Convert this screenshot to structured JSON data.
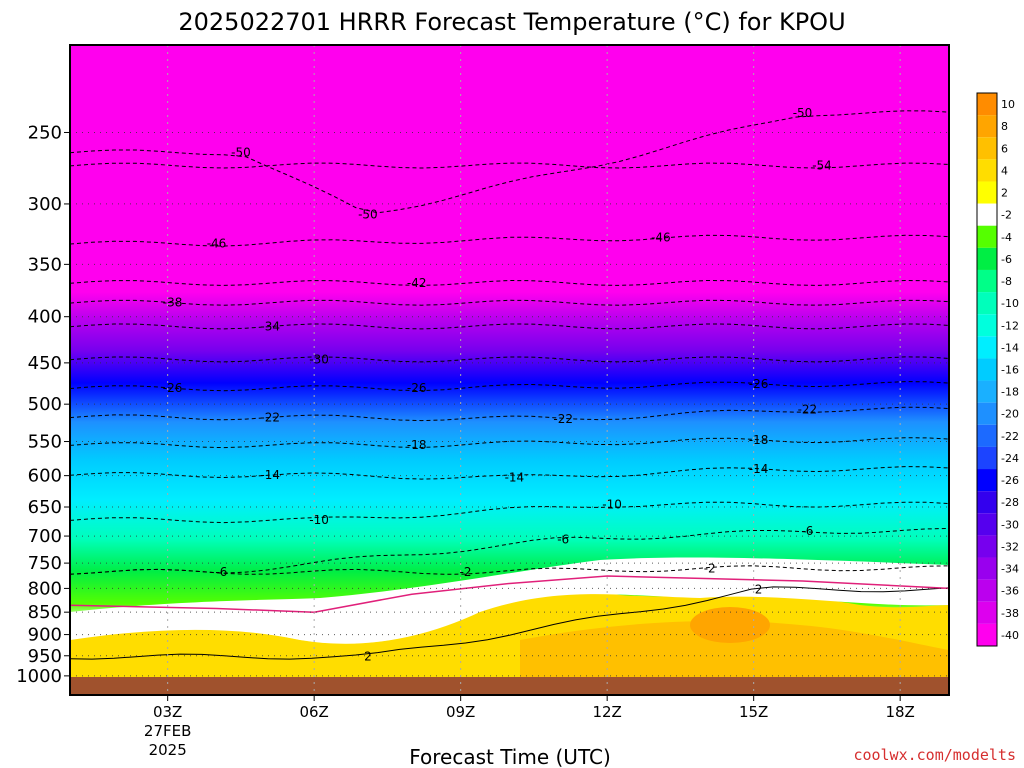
{
  "chart_data": {
    "type": "heatmap",
    "title": "2025022701 HRRR Forecast Temperature (°C) for KPOU",
    "xlabel": "Forecast Time (UTC)",
    "ylabel": "",
    "credit": "coolwx.com/modelts",
    "x_range_hours": [
      1,
      19
    ],
    "y_scale": "log-pressure",
    "y_range_hpa": [
      1050,
      200
    ],
    "y_ticks": [
      250,
      300,
      350,
      400,
      450,
      500,
      550,
      600,
      650,
      700,
      750,
      800,
      850,
      900,
      950,
      1000
    ],
    "y_tick_labels": [
      "250",
      "300",
      "350",
      "400",
      "450",
      "500",
      "550",
      "600",
      "650",
      "700",
      "750",
      "800",
      "850",
      "900",
      "950",
      "1000"
    ],
    "x_ticks": [
      {
        "hour": 3,
        "label": "03Z",
        "sub": [
          "27FEB",
          "2025"
        ]
      },
      {
        "hour": 6,
        "label": "06Z",
        "sub": []
      },
      {
        "hour": 9,
        "label": "09Z",
        "sub": []
      },
      {
        "hour": 12,
        "label": "12Z",
        "sub": []
      },
      {
        "hour": 15,
        "label": "15Z",
        "sub": []
      },
      {
        "hour": 18,
        "label": "18Z",
        "sub": []
      }
    ],
    "grid": true,
    "ground_color": "#a0522d",
    "colorbar": {
      "labels": [
        "10",
        "8",
        "6",
        "4",
        "2",
        "-2",
        "-4",
        "-6",
        "-8",
        "-10",
        "-12",
        "-14",
        "-16",
        "-18",
        "-20",
        "-22",
        "-24",
        "-26",
        "-28",
        "-30",
        "-32",
        "-34",
        "-36",
        "-38",
        "-40"
      ],
      "colors": [
        "#ff8c00",
        "#ffa500",
        "#ffc000",
        "#ffdd00",
        "#ffff00",
        "#ffffff",
        "#55ff00",
        "#00ee44",
        "#00ff88",
        "#00ffbb",
        "#00ffdd",
        "#00eeff",
        "#00ccff",
        "#1ab0ff",
        "#1e90ff",
        "#1c6aff",
        "#1c44ff",
        "#0000ff",
        "#3300ee",
        "#5500ee",
        "#7700ee",
        "#9900ee",
        "#bb00ee",
        "#dd00ee",
        "#ff00ee"
      ]
    },
    "temperature_profile_hpa": [
      {
        "p": 250,
        "t": -50
      },
      {
        "p": 300,
        "t": -50
      },
      {
        "p": 350,
        "t": -44
      },
      {
        "p": 400,
        "t": -35
      },
      {
        "p": 450,
        "t": -29
      },
      {
        "p": 500,
        "t": -23
      },
      {
        "p": 550,
        "t": -18
      },
      {
        "p": 600,
        "t": -14
      },
      {
        "p": 650,
        "t": -10
      },
      {
        "p": 700,
        "t": -7
      },
      {
        "p": 750,
        "t": -4
      },
      {
        "p": 800,
        "t": -1
      },
      {
        "p": 850,
        "t": 2
      },
      {
        "p": 900,
        "t": 4
      },
      {
        "p": 950,
        "t": 5
      },
      {
        "p": 1000,
        "t": 6
      }
    ],
    "contour_labels": [
      {
        "text": "-50",
        "hour": 4.5,
        "p": 263
      },
      {
        "text": "-50",
        "hour": 16,
        "p": 238
      },
      {
        "text": "-54",
        "hour": 16.4,
        "p": 272
      },
      {
        "text": "-50",
        "hour": 7.1,
        "p": 308
      },
      {
        "text": "-46",
        "hour": 4.0,
        "p": 332
      },
      {
        "text": "-46",
        "hour": 13.1,
        "p": 327
      },
      {
        "text": "-42",
        "hour": 8.1,
        "p": 367
      },
      {
        "text": "-38",
        "hour": 3.1,
        "p": 386
      },
      {
        "text": "-34",
        "hour": 5.1,
        "p": 410
      },
      {
        "text": "-30",
        "hour": 6.1,
        "p": 446
      },
      {
        "text": "-26",
        "hour": 3.1,
        "p": 480
      },
      {
        "text": "-26",
        "hour": 8.1,
        "p": 480
      },
      {
        "text": "-26",
        "hour": 15.1,
        "p": 475
      },
      {
        "text": "-22",
        "hour": 5.1,
        "p": 517
      },
      {
        "text": "-22",
        "hour": 11.1,
        "p": 519
      },
      {
        "text": "-22",
        "hour": 16.1,
        "p": 507
      },
      {
        "text": "-18",
        "hour": 8.1,
        "p": 555
      },
      {
        "text": "-18",
        "hour": 15.1,
        "p": 548
      },
      {
        "text": "-14",
        "hour": 5.1,
        "p": 599
      },
      {
        "text": "-14",
        "hour": 10.1,
        "p": 603
      },
      {
        "text": "-14",
        "hour": 15.1,
        "p": 590
      },
      {
        "text": "-10",
        "hour": 6.1,
        "p": 672
      },
      {
        "text": "-10",
        "hour": 12.1,
        "p": 646
      },
      {
        "text": "-6",
        "hour": 11.1,
        "p": 706
      },
      {
        "text": "-6",
        "hour": 16.1,
        "p": 691
      },
      {
        "text": "-6",
        "hour": 4.1,
        "p": 767
      },
      {
        "text": "-2",
        "hour": 9.1,
        "p": 767
      },
      {
        "text": "-2",
        "hour": 14.1,
        "p": 760
      },
      {
        "text": "2",
        "hour": 15.1,
        "p": 802
      },
      {
        "text": "2",
        "hour": 7.1,
        "p": 952
      }
    ]
  }
}
